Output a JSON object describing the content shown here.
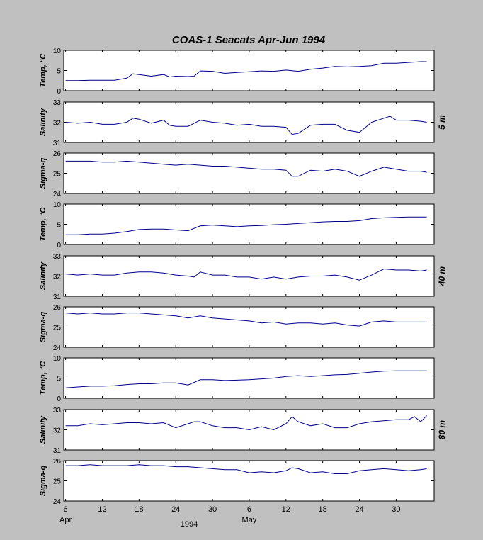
{
  "chart_data": {
    "type": "line",
    "title": "COAS-1   Seacats   Apr-Jun 1994",
    "colors": {
      "background": "#c0c0c0",
      "axes": "#ffffff",
      "line": "#00008b",
      "frame": "#000000"
    },
    "x_axis": {
      "ticks": [
        {
          "day": 6,
          "label": "6"
        },
        {
          "day": 12,
          "label": "12"
        },
        {
          "day": 18,
          "label": "18"
        },
        {
          "day": 24,
          "label": "24"
        },
        {
          "day": 30,
          "label": "30"
        },
        {
          "day": 36,
          "label": "6"
        },
        {
          "day": 42,
          "label": "12"
        },
        {
          "day": 48,
          "label": "18"
        },
        {
          "day": 54,
          "label": "24"
        },
        {
          "day": 60,
          "label": "30"
        }
      ],
      "month_labels": [
        {
          "day": 6,
          "label": "Apr"
        },
        {
          "day": 36,
          "label": "May"
        }
      ],
      "year_label": "1994"
    },
    "depth_groups": [
      {
        "label": "5 m",
        "panels": [
          0,
          1,
          2
        ]
      },
      {
        "label": "40 m",
        "panels": [
          3,
          4,
          5
        ]
      },
      {
        "label": "80 m",
        "panels": [
          6,
          7,
          8
        ]
      }
    ],
    "panels": [
      {
        "ylabel": "Temp, °C",
        "ylim": [
          0,
          10
        ],
        "yticks": [
          "0",
          "5",
          "10"
        ],
        "x": [
          6,
          8,
          10,
          12,
          14,
          16,
          17,
          18,
          20,
          22,
          23,
          24,
          26,
          27,
          28,
          30,
          32,
          34,
          36,
          38,
          40,
          42,
          44,
          46,
          48,
          50,
          52,
          54,
          56,
          58,
          60,
          62,
          64,
          65
        ],
        "values": [
          2.5,
          2.5,
          2.6,
          2.6,
          2.6,
          3.1,
          4.2,
          4.0,
          3.6,
          4.0,
          3.4,
          3.6,
          3.5,
          3.6,
          4.9,
          4.8,
          4.3,
          4.5,
          4.7,
          4.9,
          4.8,
          5.1,
          4.8,
          5.3,
          5.6,
          6.0,
          5.9,
          6.0,
          6.2,
          6.8,
          6.8,
          7.0,
          7.2,
          7.2
        ]
      },
      {
        "ylabel": "Salinity",
        "ylim": [
          31,
          33
        ],
        "yticks": [
          "31",
          "32",
          "33"
        ],
        "x": [
          6,
          8,
          10,
          12,
          14,
          16,
          17,
          18,
          20,
          22,
          23,
          24,
          26,
          27,
          28,
          30,
          32,
          34,
          36,
          38,
          40,
          42,
          43,
          44,
          46,
          48,
          50,
          52,
          53,
          54,
          56,
          58,
          59,
          60,
          62,
          64,
          65
        ],
        "values": [
          32.0,
          31.95,
          32.0,
          31.9,
          31.9,
          32.0,
          32.2,
          32.15,
          31.95,
          32.1,
          31.85,
          31.8,
          31.8,
          31.95,
          32.1,
          32.0,
          31.95,
          31.85,
          31.9,
          31.8,
          31.8,
          31.75,
          31.4,
          31.45,
          31.85,
          31.9,
          31.9,
          31.6,
          31.55,
          31.5,
          32.0,
          32.2,
          32.3,
          32.1,
          32.1,
          32.05,
          32.0
        ]
      },
      {
        "ylabel": "Sigma-q",
        "ylim": [
          24,
          26
        ],
        "yticks": [
          "24",
          "25",
          "26"
        ],
        "x": [
          6,
          8,
          10,
          12,
          14,
          16,
          18,
          20,
          22,
          24,
          26,
          28,
          30,
          32,
          34,
          36,
          38,
          40,
          42,
          43,
          44,
          46,
          48,
          50,
          52,
          54,
          56,
          58,
          60,
          62,
          64,
          65
        ],
        "values": [
          25.6,
          25.6,
          25.6,
          25.55,
          25.55,
          25.6,
          25.55,
          25.5,
          25.45,
          25.4,
          25.45,
          25.4,
          25.35,
          25.35,
          25.3,
          25.25,
          25.2,
          25.2,
          25.15,
          24.85,
          24.85,
          25.15,
          25.1,
          25.2,
          25.1,
          24.85,
          25.1,
          25.3,
          25.2,
          25.1,
          25.1,
          25.05
        ]
      },
      {
        "ylabel": "Temp, °C",
        "ylim": [
          0,
          10
        ],
        "yticks": [
          "0",
          "5",
          "10"
        ],
        "x": [
          6,
          8,
          10,
          12,
          14,
          16,
          18,
          20,
          22,
          24,
          26,
          28,
          30,
          32,
          34,
          36,
          38,
          40,
          42,
          44,
          46,
          48,
          50,
          52,
          54,
          56,
          58,
          60,
          62,
          64,
          65
        ],
        "values": [
          2.4,
          2.4,
          2.6,
          2.6,
          2.8,
          3.2,
          3.7,
          3.8,
          3.8,
          3.6,
          3.4,
          4.6,
          4.8,
          4.6,
          4.4,
          4.6,
          4.7,
          4.9,
          5.0,
          5.2,
          5.4,
          5.6,
          5.7,
          5.7,
          5.9,
          6.4,
          6.6,
          6.7,
          6.8,
          6.8,
          6.8
        ]
      },
      {
        "ylabel": "Salinity",
        "ylim": [
          31,
          33
        ],
        "yticks": [
          "31",
          "32",
          "33"
        ],
        "x": [
          6,
          8,
          10,
          12,
          14,
          16,
          18,
          20,
          22,
          24,
          26,
          27,
          28,
          30,
          32,
          34,
          36,
          38,
          40,
          42,
          44,
          46,
          48,
          50,
          52,
          54,
          56,
          58,
          60,
          62,
          64,
          65
        ],
        "values": [
          32.1,
          32.05,
          32.1,
          32.05,
          32.05,
          32.15,
          32.2,
          32.2,
          32.15,
          32.05,
          32.0,
          31.95,
          32.2,
          32.05,
          32.05,
          31.95,
          31.95,
          31.85,
          31.95,
          31.85,
          31.95,
          32.0,
          32.0,
          32.05,
          31.95,
          31.8,
          32.05,
          32.35,
          32.3,
          32.3,
          32.25,
          32.3
        ]
      },
      {
        "ylabel": "Sigma-q",
        "ylim": [
          24,
          26
        ],
        "yticks": [
          "24",
          "25",
          "26"
        ],
        "x": [
          6,
          8,
          10,
          12,
          14,
          16,
          18,
          20,
          22,
          24,
          26,
          28,
          30,
          32,
          34,
          36,
          38,
          40,
          42,
          44,
          46,
          48,
          50,
          52,
          54,
          56,
          58,
          60,
          62,
          64,
          65
        ],
        "values": [
          25.7,
          25.65,
          25.7,
          25.65,
          25.65,
          25.7,
          25.7,
          25.65,
          25.6,
          25.55,
          25.45,
          25.55,
          25.45,
          25.4,
          25.35,
          25.3,
          25.2,
          25.25,
          25.15,
          25.2,
          25.2,
          25.15,
          25.2,
          25.1,
          25.05,
          25.25,
          25.3,
          25.25,
          25.25,
          25.25,
          25.25
        ]
      },
      {
        "ylabel": "Temp, °C",
        "ylim": [
          0,
          10
        ],
        "yticks": [
          "0",
          "5",
          "10"
        ],
        "x": [
          6,
          8,
          10,
          12,
          14,
          16,
          18,
          20,
          22,
          24,
          26,
          28,
          30,
          32,
          34,
          36,
          38,
          40,
          42,
          44,
          46,
          48,
          50,
          52,
          54,
          56,
          58,
          60,
          62,
          64,
          65
        ],
        "values": [
          2.6,
          2.8,
          3.0,
          3.0,
          3.1,
          3.4,
          3.6,
          3.6,
          3.8,
          3.8,
          3.3,
          4.6,
          4.6,
          4.4,
          4.5,
          4.6,
          4.8,
          5.0,
          5.4,
          5.6,
          5.4,
          5.6,
          5.8,
          5.9,
          6.2,
          6.5,
          6.7,
          6.8,
          6.8,
          6.8,
          6.8
        ]
      },
      {
        "ylabel": "Salinity",
        "ylim": [
          31,
          33
        ],
        "yticks": [
          "31",
          "32",
          "33"
        ],
        "x": [
          6,
          8,
          10,
          12,
          14,
          16,
          18,
          20,
          22,
          24,
          26,
          27,
          28,
          30,
          32,
          34,
          36,
          38,
          40,
          42,
          43,
          44,
          46,
          48,
          50,
          52,
          54,
          56,
          58,
          60,
          62,
          63,
          64,
          65
        ],
        "values": [
          32.2,
          32.2,
          32.3,
          32.25,
          32.3,
          32.35,
          32.35,
          32.3,
          32.35,
          32.1,
          32.3,
          32.4,
          32.4,
          32.2,
          32.1,
          32.1,
          32.0,
          32.15,
          32.0,
          32.3,
          32.65,
          32.4,
          32.2,
          32.3,
          32.1,
          32.1,
          32.3,
          32.4,
          32.45,
          32.5,
          32.5,
          32.65,
          32.4,
          32.7
        ]
      },
      {
        "ylabel": "Sigma-q",
        "ylim": [
          24,
          26
        ],
        "yticks": [
          "24",
          "25",
          "26"
        ],
        "x": [
          6,
          8,
          10,
          12,
          14,
          16,
          18,
          20,
          22,
          24,
          26,
          28,
          30,
          32,
          34,
          36,
          38,
          40,
          42,
          43,
          44,
          46,
          48,
          50,
          52,
          54,
          56,
          58,
          60,
          62,
          64,
          65
        ],
        "values": [
          25.75,
          25.75,
          25.8,
          25.75,
          25.75,
          25.75,
          25.8,
          25.75,
          25.75,
          25.7,
          25.7,
          25.65,
          25.6,
          25.55,
          25.55,
          25.4,
          25.45,
          25.4,
          25.5,
          25.65,
          25.6,
          25.4,
          25.45,
          25.35,
          25.35,
          25.5,
          25.55,
          25.6,
          25.55,
          25.5,
          25.55,
          25.6
        ]
      }
    ]
  }
}
